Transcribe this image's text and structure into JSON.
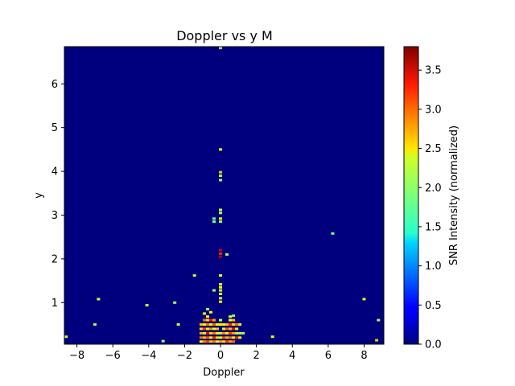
{
  "chart_data": {
    "type": "heatmap",
    "title": "Doppler vs y M",
    "xlabel": "Doppler",
    "ylabel": "y",
    "xlim": [
      -8.7,
      9.1
    ],
    "ylim": [
      0.05,
      6.85
    ],
    "x_ticks": [
      -8,
      -6,
      -4,
      -2,
      0,
      2,
      4,
      6,
      8
    ],
    "y_ticks": [
      1,
      2,
      3,
      4,
      5,
      6
    ],
    "x_tick_labels": [
      "−8",
      "−6",
      "−4",
      "−2",
      "0",
      "2",
      "4",
      "6",
      "8"
    ],
    "y_tick_labels": [
      "1",
      "2",
      "3",
      "4",
      "5",
      "6"
    ],
    "background_value": 0.0,
    "cell_size": {
      "doppler": 0.18,
      "y": 0.055
    },
    "colormap": "jet",
    "colorbar": {
      "label": "SNR Intensity (normalized)",
      "min": 0.0,
      "max": 3.8,
      "ticks": [
        0.0,
        0.5,
        1.0,
        1.5,
        2.0,
        2.5,
        3.0,
        3.5
      ],
      "tick_labels": [
        "0.0",
        "0.5",
        "1.0",
        "1.5",
        "2.0",
        "2.5",
        "3.0",
        "3.5"
      ]
    },
    "cells": [
      {
        "x": 0.0,
        "y": 6.82,
        "v": 2.0
      },
      {
        "x": 0.0,
        "y": 4.5,
        "v": 2.3
      },
      {
        "x": 0.0,
        "y": 3.98,
        "v": 2.6
      },
      {
        "x": 0.0,
        "y": 3.9,
        "v": 2.1
      },
      {
        "x": 0.0,
        "y": 3.8,
        "v": 2.0
      },
      {
        "x": 0.0,
        "y": 3.12,
        "v": 2.2
      },
      {
        "x": 0.0,
        "y": 3.05,
        "v": 2.1
      },
      {
        "x": 0.0,
        "y": 2.92,
        "v": 2.3
      },
      {
        "x": 0.0,
        "y": 2.85,
        "v": 2.0
      },
      {
        "x": -0.36,
        "y": 2.92,
        "v": 1.8
      },
      {
        "x": -0.36,
        "y": 2.85,
        "v": 1.9
      },
      {
        "x": 6.25,
        "y": 2.58,
        "v": 1.9
      },
      {
        "x": 0.0,
        "y": 2.2,
        "v": 3.5
      },
      {
        "x": 0.0,
        "y": 2.12,
        "v": 3.2
      },
      {
        "x": 0.0,
        "y": 2.05,
        "v": 3.6
      },
      {
        "x": 0.36,
        "y": 2.1,
        "v": 2.0
      },
      {
        "x": -1.45,
        "y": 1.62,
        "v": 2.1
      },
      {
        "x": 0.0,
        "y": 1.62,
        "v": 2.3
      },
      {
        "x": 0.0,
        "y": 1.42,
        "v": 2.2
      },
      {
        "x": 0.0,
        "y": 1.35,
        "v": 2.4
      },
      {
        "x": 0.0,
        "y": 1.28,
        "v": 2.2
      },
      {
        "x": -0.36,
        "y": 1.28,
        "v": 2.0
      },
      {
        "x": 0.0,
        "y": 1.2,
        "v": 2.3
      },
      {
        "x": 0.0,
        "y": 1.1,
        "v": 2.1
      },
      {
        "x": 0.0,
        "y": 1.02,
        "v": 2.4
      },
      {
        "x": -6.8,
        "y": 1.08,
        "v": 2.2
      },
      {
        "x": -4.1,
        "y": 0.94,
        "v": 2.1
      },
      {
        "x": -2.55,
        "y": 1.0,
        "v": 2.0
      },
      {
        "x": 8.0,
        "y": 1.08,
        "v": 2.3
      },
      {
        "x": -7.0,
        "y": 0.5,
        "v": 2.0
      },
      {
        "x": -2.35,
        "y": 0.5,
        "v": 2.1
      },
      {
        "x": -8.6,
        "y": 0.22,
        "v": 2.2
      },
      {
        "x": -3.2,
        "y": 0.12,
        "v": 2.0
      },
      {
        "x": 2.9,
        "y": 0.22,
        "v": 2.3
      },
      {
        "x": 8.8,
        "y": 0.6,
        "v": 2.0
      },
      {
        "x": 8.7,
        "y": 0.14,
        "v": 2.6
      },
      {
        "x": -0.9,
        "y": 0.75,
        "v": 2.3
      },
      {
        "x": -0.72,
        "y": 0.85,
        "v": 2.0
      },
      {
        "x": -0.54,
        "y": 0.78,
        "v": 2.3
      },
      {
        "x": -0.72,
        "y": 0.68,
        "v": 2.4
      },
      {
        "x": -0.9,
        "y": 0.6,
        "v": 2.9
      },
      {
        "x": -0.72,
        "y": 0.6,
        "v": 2.5
      },
      {
        "x": -0.54,
        "y": 0.6,
        "v": 3.3
      },
      {
        "x": -0.36,
        "y": 0.6,
        "v": 2.7
      },
      {
        "x": -1.08,
        "y": 0.5,
        "v": 2.6
      },
      {
        "x": -0.9,
        "y": 0.5,
        "v": 2.3
      },
      {
        "x": -0.72,
        "y": 0.5,
        "v": 2.9
      },
      {
        "x": -0.54,
        "y": 0.5,
        "v": 2.2
      },
      {
        "x": -0.36,
        "y": 0.5,
        "v": 3.0
      },
      {
        "x": -0.18,
        "y": 0.5,
        "v": 2.4
      },
      {
        "x": -1.08,
        "y": 0.4,
        "v": 2.5
      },
      {
        "x": -0.9,
        "y": 0.4,
        "v": 3.1
      },
      {
        "x": -0.72,
        "y": 0.4,
        "v": 2.4
      },
      {
        "x": -0.54,
        "y": 0.4,
        "v": 2.8
      },
      {
        "x": -0.36,
        "y": 0.4,
        "v": 2.3
      },
      {
        "x": -0.18,
        "y": 0.4,
        "v": 2.6
      },
      {
        "x": -1.08,
        "y": 0.3,
        "v": 2.7
      },
      {
        "x": -0.9,
        "y": 0.3,
        "v": 2.2
      },
      {
        "x": -0.72,
        "y": 0.3,
        "v": 3.4
      },
      {
        "x": -0.54,
        "y": 0.3,
        "v": 2.5
      },
      {
        "x": -0.36,
        "y": 0.3,
        "v": 2.9
      },
      {
        "x": -0.18,
        "y": 0.3,
        "v": 2.3
      },
      {
        "x": -1.08,
        "y": 0.2,
        "v": 2.9
      },
      {
        "x": -0.9,
        "y": 0.2,
        "v": 2.6
      },
      {
        "x": -0.72,
        "y": 0.2,
        "v": 3.0
      },
      {
        "x": -0.54,
        "y": 0.2,
        "v": 2.4
      },
      {
        "x": -0.36,
        "y": 0.2,
        "v": 3.2
      },
      {
        "x": -0.18,
        "y": 0.2,
        "v": 2.5
      },
      {
        "x": -1.08,
        "y": 0.11,
        "v": 2.4
      },
      {
        "x": -0.9,
        "y": 0.11,
        "v": 2.8
      },
      {
        "x": -0.72,
        "y": 0.11,
        "v": 3.1
      },
      {
        "x": -0.54,
        "y": 0.11,
        "v": 2.6
      },
      {
        "x": -0.36,
        "y": 0.11,
        "v": 2.9
      },
      {
        "x": -0.18,
        "y": 0.11,
        "v": 2.3
      },
      {
        "x": 0.0,
        "y": 0.11,
        "v": 2.7
      },
      {
        "x": 0.0,
        "y": 0.2,
        "v": 2.4
      },
      {
        "x": 0.0,
        "y": 0.3,
        "v": 2.2
      },
      {
        "x": 0.0,
        "y": 0.5,
        "v": 2.3
      },
      {
        "x": 0.0,
        "y": 0.6,
        "v": 2.2
      },
      {
        "x": 0.18,
        "y": 0.5,
        "v": 2.4
      },
      {
        "x": 0.36,
        "y": 0.5,
        "v": 2.6
      },
      {
        "x": 0.54,
        "y": 0.5,
        "v": 3.2
      },
      {
        "x": 0.72,
        "y": 0.5,
        "v": 2.5
      },
      {
        "x": 0.9,
        "y": 0.5,
        "v": 2.9
      },
      {
        "x": 0.18,
        "y": 0.4,
        "v": 2.3
      },
      {
        "x": 0.36,
        "y": 0.4,
        "v": 3.0
      },
      {
        "x": 0.54,
        "y": 0.4,
        "v": 2.6
      },
      {
        "x": 0.72,
        "y": 0.4,
        "v": 3.3
      },
      {
        "x": 0.9,
        "y": 0.4,
        "v": 2.3
      },
      {
        "x": 0.18,
        "y": 0.3,
        "v": 2.8
      },
      {
        "x": 0.36,
        "y": 0.3,
        "v": 2.4
      },
      {
        "x": 0.54,
        "y": 0.3,
        "v": 3.1
      },
      {
        "x": 0.72,
        "y": 0.3,
        "v": 2.7
      },
      {
        "x": 0.9,
        "y": 0.3,
        "v": 2.2
      },
      {
        "x": 0.18,
        "y": 0.2,
        "v": 3.0
      },
      {
        "x": 0.36,
        "y": 0.2,
        "v": 2.6
      },
      {
        "x": 0.54,
        "y": 0.2,
        "v": 2.9
      },
      {
        "x": 0.72,
        "y": 0.2,
        "v": 2.4
      },
      {
        "x": 0.9,
        "y": 0.2,
        "v": 3.2
      },
      {
        "x": 0.18,
        "y": 0.11,
        "v": 2.5
      },
      {
        "x": 0.36,
        "y": 0.11,
        "v": 3.1
      },
      {
        "x": 0.54,
        "y": 0.11,
        "v": 2.7
      },
      {
        "x": 0.72,
        "y": 0.11,
        "v": 2.9
      },
      {
        "x": 0.54,
        "y": 0.6,
        "v": 2.4
      },
      {
        "x": 0.72,
        "y": 0.6,
        "v": 2.6
      },
      {
        "x": 0.72,
        "y": 0.7,
        "v": 1.9
      },
      {
        "x": 0.54,
        "y": 0.68,
        "v": 2.2
      },
      {
        "x": 1.08,
        "y": 0.5,
        "v": 2.2
      },
      {
        "x": 1.08,
        "y": 0.3,
        "v": 2.1
      },
      {
        "x": 1.26,
        "y": 0.3,
        "v": 2.0
      },
      {
        "x": 1.08,
        "y": 0.2,
        "v": 2.4
      }
    ]
  }
}
